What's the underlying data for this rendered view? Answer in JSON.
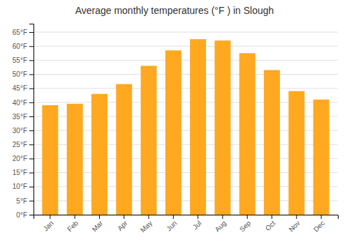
{
  "chart_data": {
    "type": "bar",
    "title": "Average monthly temperatures (°F ) in Slough",
    "categories": [
      "Jan",
      "Feb",
      "Mar",
      "Apr",
      "May",
      "Jun",
      "Jul",
      "Aug",
      "Sep",
      "Oct",
      "Nov",
      "Dec"
    ],
    "values": [
      39,
      39.5,
      43,
      46.5,
      53,
      58.5,
      62.5,
      62,
      57.5,
      51.5,
      44,
      41
    ],
    "color": "#FFA820",
    "ylim": [
      0,
      68
    ],
    "yticks": [
      {
        "value": 0,
        "label": "0°F"
      },
      {
        "value": 5,
        "label": "5°F"
      },
      {
        "value": 10,
        "label": "10°F"
      },
      {
        "value": 15,
        "label": "15°F"
      },
      {
        "value": 20,
        "label": "20°F"
      },
      {
        "value": 25,
        "label": "25°F"
      },
      {
        "value": 30,
        "label": "30°F"
      },
      {
        "value": 35,
        "label": "35°F"
      },
      {
        "value": 40,
        "label": "40°F"
      },
      {
        "value": 45,
        "label": "45°F"
      },
      {
        "value": 50,
        "label": "50°F"
      },
      {
        "value": 55,
        "label": "55°F"
      },
      {
        "value": 60,
        "label": "60°F"
      },
      {
        "value": 65,
        "label": "65°F"
      }
    ],
    "grid": true
  }
}
